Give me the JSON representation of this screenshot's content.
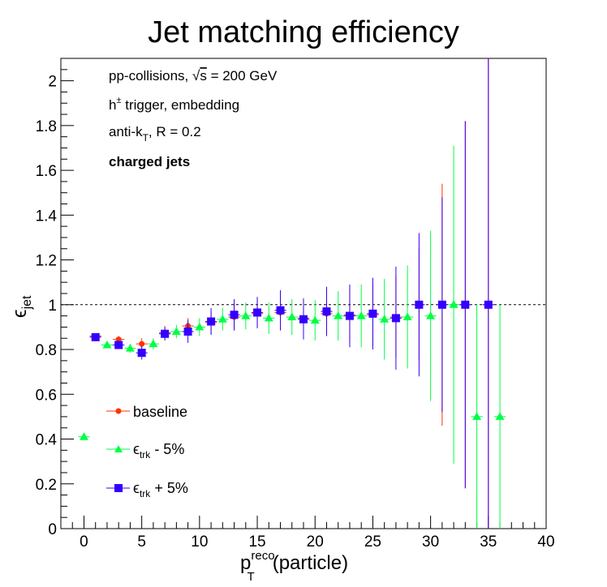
{
  "chart_data": {
    "type": "scatter",
    "title": "Jet matching efficiency",
    "xlabel": {
      "main": "p",
      "sup": "reco",
      "sub": "T",
      "tail": "(particle)"
    },
    "ylabel": {
      "main": "ϵ",
      "sub": "jet"
    },
    "xlim": [
      -2,
      40
    ],
    "ylim": [
      0,
      2.1
    ],
    "x_ticks": [
      0,
      5,
      10,
      15,
      20,
      25,
      30,
      35,
      40
    ],
    "y_ticks": [
      0,
      0.2,
      0.4,
      0.6,
      0.8,
      1,
      1.2,
      1.4,
      1.6,
      1.8,
      2
    ],
    "x_tick_labels": [
      "0",
      "5",
      "10",
      "15",
      "20",
      "25",
      "30",
      "35",
      "40"
    ],
    "y_tick_labels": [
      "0",
      "0.2",
      "0.4",
      "0.6",
      "0.8",
      "1",
      "1.2",
      "1.4",
      "1.6",
      "1.8",
      "2"
    ],
    "reference_line": 1,
    "annotations": {
      "line1_pre": "pp-collisions, ",
      "line1_sqrt": "√",
      "line1_s": "s",
      "line1_post": " = 200 GeV",
      "line2_pre": "h",
      "line2_sup": "±",
      "line2_post": " trigger, embedding",
      "line3_pre": "anti-k",
      "line3_sub": "T",
      "line3_post": ", R = 0.2",
      "line4": "charged jets"
    },
    "legend": {
      "placement": "bottom-left",
      "entries": [
        {
          "label": "baseline"
        },
        {
          "main": "ϵ",
          "sub": "trk",
          "tail": " - 5%"
        },
        {
          "main": "ϵ",
          "sub": "trk",
          "tail": " + 5%"
        }
      ]
    },
    "series": [
      {
        "key": "baseline",
        "color": "#ff3300",
        "marker": "circle",
        "points": [
          {
            "x": 1,
            "y": 0.86,
            "err": 0.01
          },
          {
            "x": 3,
            "y": 0.845,
            "err": 0.015
          },
          {
            "x": 5,
            "y": 0.825,
            "err": 0.025
          },
          {
            "x": 7,
            "y": 0.875,
            "err": 0.03
          },
          {
            "x": 9,
            "y": 0.905,
            "err": 0.035
          },
          {
            "x": 11,
            "y": 0.92,
            "err": 0.05
          },
          {
            "x": 13,
            "y": 0.945,
            "err": 0.06
          },
          {
            "x": 15,
            "y": 0.96,
            "err": 0.065
          },
          {
            "x": 17,
            "y": 0.965,
            "err": 0.08
          },
          {
            "x": 19,
            "y": 0.94,
            "err": 0.09
          },
          {
            "x": 21,
            "y": 0.96,
            "err": 0.1
          },
          {
            "x": 23,
            "y": 0.955,
            "err": 0.12
          },
          {
            "x": 25,
            "y": 0.955,
            "err": 0.14
          },
          {
            "x": 27,
            "y": 0.945,
            "err": 0.18
          },
          {
            "x": 29,
            "y": 1.0,
            "err": 0.25
          },
          {
            "x": 31,
            "y": 1.0,
            "err": 0.54
          },
          {
            "x": 33,
            "y": 1.0,
            "err": 0.82
          },
          {
            "x": 35,
            "y": 1.0,
            "err": 1.2
          }
        ]
      },
      {
        "key": "trk_minus",
        "color": "#00ff44",
        "marker": "triangle",
        "points": [
          {
            "x": 0,
            "y": 0.41,
            "err": 0.01
          },
          {
            "x": 2,
            "y": 0.82,
            "err": 0.01
          },
          {
            "x": 4,
            "y": 0.805,
            "err": 0.02
          },
          {
            "x": 6,
            "y": 0.825,
            "err": 0.025
          },
          {
            "x": 8,
            "y": 0.88,
            "err": 0.03
          },
          {
            "x": 10,
            "y": 0.9,
            "err": 0.04
          },
          {
            "x": 12,
            "y": 0.935,
            "err": 0.05
          },
          {
            "x": 14,
            "y": 0.95,
            "err": 0.06
          },
          {
            "x": 16,
            "y": 0.94,
            "err": 0.07
          },
          {
            "x": 18,
            "y": 0.945,
            "err": 0.08
          },
          {
            "x": 20,
            "y": 0.93,
            "err": 0.09
          },
          {
            "x": 22,
            "y": 0.95,
            "err": 0.11
          },
          {
            "x": 24,
            "y": 0.95,
            "err": 0.14
          },
          {
            "x": 26,
            "y": 0.935,
            "err": 0.18
          },
          {
            "x": 28,
            "y": 0.945,
            "err": 0.23
          },
          {
            "x": 30,
            "y": 0.95,
            "err": 0.38
          },
          {
            "x": 32,
            "y": 1.0,
            "err": 0.71
          },
          {
            "x": 34,
            "y": 0.5,
            "err": 0.5
          },
          {
            "x": 36,
            "y": 0.5,
            "err": 0.5
          }
        ]
      },
      {
        "key": "trk_plus",
        "color": "#3300ff",
        "marker": "square",
        "points": [
          {
            "x": 1,
            "y": 0.855,
            "err": 0.01
          },
          {
            "x": 3,
            "y": 0.82,
            "err": 0.015
          },
          {
            "x": 5,
            "y": 0.785,
            "err": 0.03
          },
          {
            "x": 7,
            "y": 0.87,
            "err": 0.03
          },
          {
            "x": 9,
            "y": 0.88,
            "err": 0.05
          },
          {
            "x": 11,
            "y": 0.925,
            "err": 0.06
          },
          {
            "x": 13,
            "y": 0.955,
            "err": 0.07
          },
          {
            "x": 15,
            "y": 0.965,
            "err": 0.07
          },
          {
            "x": 17,
            "y": 0.975,
            "err": 0.09
          },
          {
            "x": 19,
            "y": 0.935,
            "err": 0.09
          },
          {
            "x": 21,
            "y": 0.97,
            "err": 0.11
          },
          {
            "x": 23,
            "y": 0.95,
            "err": 0.14
          },
          {
            "x": 25,
            "y": 0.96,
            "err": 0.16
          },
          {
            "x": 27,
            "y": 0.94,
            "err": 0.23
          },
          {
            "x": 29,
            "y": 1.0,
            "err": 0.32
          },
          {
            "x": 31,
            "y": 1.0,
            "err": 0.48
          },
          {
            "x": 33,
            "y": 1.0,
            "err": 0.82
          },
          {
            "x": 35,
            "y": 1.0,
            "err": 1.2
          }
        ]
      }
    ]
  }
}
